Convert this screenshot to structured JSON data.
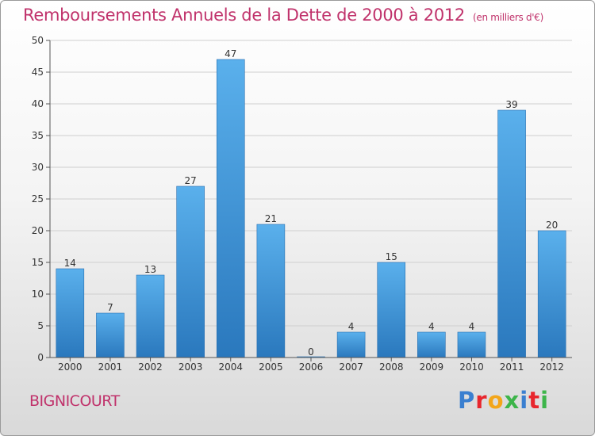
{
  "title": "Remboursements Annuels de la Dette de 2000 à 2012",
  "unit": "(en milliers d'€)",
  "commune": "BIGNICOURT",
  "logo": {
    "letters": [
      "P",
      "r",
      "o",
      "x",
      "i",
      "t",
      "i"
    ],
    "colors": [
      "#3a7fd0",
      "#e8262d",
      "#f3a61a",
      "#3db54a",
      "#3a7fd0",
      "#e8262d",
      "#3db54a"
    ]
  },
  "colors": {
    "bar": "#3b8fd6",
    "bar_light": "#5aaae6",
    "title": "#c0326b",
    "grid": "#cccccc"
  },
  "chart_data": {
    "type": "bar",
    "title": "Remboursements Annuels de la Dette de 2000 à 2012",
    "categories": [
      "2000",
      "2001",
      "2002",
      "2003",
      "2004",
      "2005",
      "2006",
      "2007",
      "2008",
      "2009",
      "2010",
      "2011",
      "2012"
    ],
    "values": [
      14,
      7,
      13,
      27,
      47,
      21,
      0,
      4,
      15,
      4,
      4,
      39,
      20
    ],
    "xlabel": "",
    "ylabel": "",
    "ylim": [
      0,
      50
    ],
    "yticks": [
      0,
      5,
      10,
      15,
      20,
      25,
      30,
      35,
      40,
      45,
      50
    ],
    "grid": true
  }
}
